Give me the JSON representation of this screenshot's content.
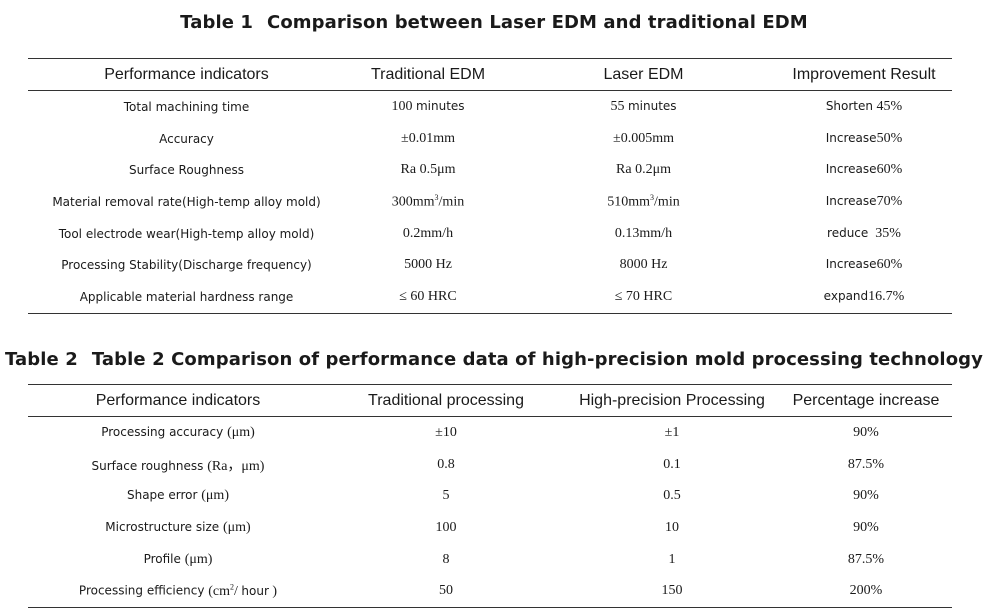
{
  "table1": {
    "number": "Table 1",
    "title": "Comparison between Laser EDM and traditional EDM",
    "headers": [
      "Performance indicators",
      "Traditional EDM",
      "Laser EDM",
      "Improvement Result"
    ],
    "rows": [
      {
        "label": "Total machining time",
        "trad_num": "100",
        "trad_unit": "minutes",
        "laser_num": "55",
        "laser_unit": "minutes",
        "verb": "Shorten",
        "pct": "45%"
      },
      {
        "label": "Accuracy",
        "trad": "±0.01mm",
        "laser": "±0.005mm",
        "verb": "Increase",
        "pct": "50%"
      },
      {
        "label": "Surface Roughness",
        "trad": "Ra 0.5μm",
        "laser": "Ra 0.2μm",
        "verb": "Increase",
        "pct": "60%"
      },
      {
        "label": "Material removal rate(High-temp alloy mold)",
        "trad_pre": "300mm",
        "trad_sup": "3",
        "trad_post": "/min",
        "laser_pre": "510mm",
        "laser_sup": "3",
        "laser_post": "/min",
        "verb": "Increase",
        "pct": "70%"
      },
      {
        "label": "Tool electrode wear(High-temp alloy mold)",
        "trad": "0.2mm/h",
        "laser": "0.13mm/h",
        "verb": "reduce",
        "pct": "35%"
      },
      {
        "label": "Processing Stability(Discharge frequency)",
        "trad": "5000 Hz",
        "laser": "8000 Hz",
        "verb": "Increase",
        "pct": "60%"
      },
      {
        "label": "Applicable material hardness range",
        "trad": "≤ 60 HRC",
        "laser": "≤ 70 HRC",
        "verb": "expand",
        "pct": "16.7%"
      }
    ]
  },
  "table2": {
    "number": "Table 2",
    "title": "Table 2 Comparison of performance data of high-precision mold processing technology",
    "headers": [
      "Performance indicators",
      "Traditional processing",
      "High-precision Processing",
      "Percentage increase"
    ],
    "rows": [
      {
        "label": "Processing accuracy",
        "unit": "(μm)",
        "trad": "±10",
        "hp": "±1",
        "pct": "90%"
      },
      {
        "label": "Surface roughness",
        "unit": "(Ra，μm)",
        "trad": "0.8",
        "hp": "0.1",
        "pct": "87.5%"
      },
      {
        "label": "Shape error",
        "unit": "(μm)",
        "trad": "5",
        "hp": "0.5",
        "pct": "90%"
      },
      {
        "label": "Microstructure size",
        "unit": "(μm)",
        "trad": "100",
        "hp": "10",
        "pct": "90%"
      },
      {
        "label": "Profile",
        "unit": "(μm)",
        "trad": "8",
        "hp": "1",
        "pct": "87.5%"
      },
      {
        "label": "Processing efficiency",
        "unit_pre": "(cm",
        "unit_sup": "2",
        "unit_mid": "/ ",
        "unit_hour": "hour",
        "unit_post": ")",
        "trad": "50",
        "hp": "150",
        "pct": "200%"
      }
    ]
  }
}
